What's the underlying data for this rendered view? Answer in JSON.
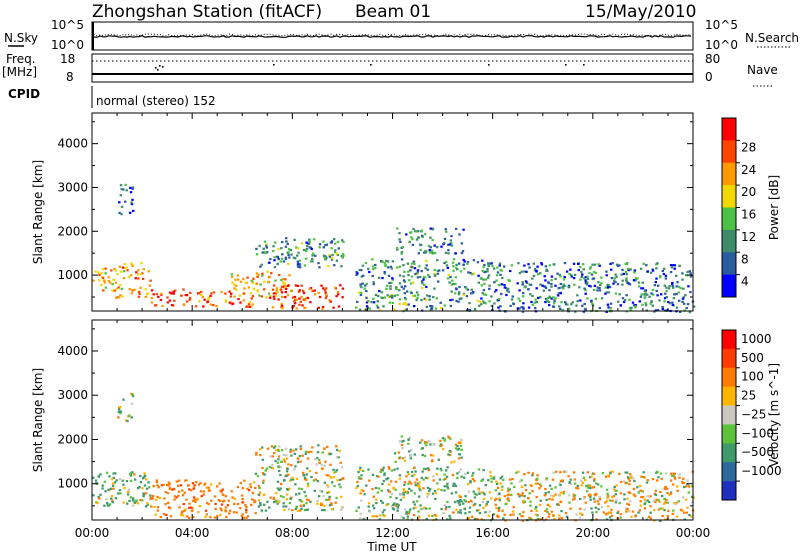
{
  "header": {
    "station": "Zhongshan Station (fitACF)",
    "beam": "Beam 01",
    "date": "15/May/2010"
  },
  "strip_labels": {
    "nsky": "N.Sky",
    "nsky_top": "10^5",
    "nsky_bot": "10^0",
    "nsearch": "N.Search",
    "nsearch_top": "10^5",
    "nsearch_bot": "10^0",
    "freq": "Freq.",
    "freq_unit": "[MHz]",
    "freq_top": "18",
    "freq_bot": "8",
    "nave": "Nave",
    "nave_top": "80",
    "nave_bot": "0",
    "cpid": "CPID",
    "cpid_text": "normal (stereo) 152"
  },
  "chart_data": [
    {
      "type": "heatmap",
      "name": "power-panel",
      "ylabel": "Slant Range [km]",
      "xlabel": "",
      "x_ticks": [
        "00:00",
        "04:00",
        "08:00",
        "12:00",
        "16:00",
        "20:00",
        "00:00"
      ],
      "xlim_hours": [
        0,
        24
      ],
      "y_ticks": [
        1000,
        2000,
        3000,
        4000
      ],
      "ylim": [
        180,
        4700
      ],
      "colorbar": {
        "label": "Power [dB]",
        "ticks": [
          "4",
          "8",
          "12",
          "16",
          "20",
          "24",
          "28"
        ],
        "colors": [
          "#0000ff",
          "#2a5aa0",
          "#3c8c6a",
          "#4cc244",
          "#f0d800",
          "#ff9900",
          "#ff4400",
          "#ff0000"
        ],
        "range": [
          0,
          32
        ]
      },
      "clusters": [
        {
          "t0": 0.0,
          "t1": 0.9,
          "r0": 600,
          "r1": 1200,
          "level": 20
        },
        {
          "t0": 0.9,
          "t1": 2.3,
          "r0": 500,
          "r1": 1300,
          "level": 22
        },
        {
          "t0": 2.3,
          "t1": 4.0,
          "r0": 300,
          "r1": 700,
          "level": 29
        },
        {
          "t0": 4.0,
          "t1": 6.5,
          "r0": 280,
          "r1": 650,
          "level": 24
        },
        {
          "t0": 5.5,
          "t1": 8.0,
          "r0": 500,
          "r1": 1100,
          "level": 21
        },
        {
          "t0": 7.0,
          "t1": 10.0,
          "r0": 250,
          "r1": 800,
          "level": 28
        },
        {
          "t0": 6.5,
          "t1": 10.0,
          "r0": 1200,
          "r1": 1900,
          "level": 10
        },
        {
          "t0": 1.0,
          "t1": 1.6,
          "r0": 2400,
          "r1": 3100,
          "level": 6
        },
        {
          "t0": 12.0,
          "t1": 14.8,
          "r0": 1500,
          "r1": 2100,
          "level": 9
        },
        {
          "t0": 10.5,
          "t1": 16.0,
          "r0": 200,
          "r1": 1400,
          "level": 10
        },
        {
          "t0": 16.0,
          "t1": 24.0,
          "r0": 180,
          "r1": 1300,
          "level": 8
        }
      ]
    },
    {
      "type": "heatmap",
      "name": "velocity-panel",
      "ylabel": "Slant Range [km]",
      "xlabel": "Time UT",
      "x_ticks": [
        "00:00",
        "04:00",
        "08:00",
        "12:00",
        "16:00",
        "20:00",
        "00:00"
      ],
      "xlim_hours": [
        0,
        24
      ],
      "y_ticks": [
        1000,
        2000,
        3000,
        4000
      ],
      "ylim": [
        180,
        4700
      ],
      "colorbar": {
        "label": "Velocity [m s^-1]",
        "ticks": [
          "1000",
          "500",
          "100",
          "25",
          "−25",
          "−100",
          "−500",
          "−1000"
        ],
        "colors": [
          "#1f2fc0",
          "#2f6a9f",
          "#3f9a6a",
          "#5cc23a",
          "#c8c8c0",
          "#ffb400",
          "#ff7a00",
          "#ff3c00",
          "#ff0000"
        ],
        "range": [
          -1000,
          1000
        ]
      },
      "clusters": [
        {
          "t0": 0.0,
          "t1": 2.3,
          "r0": 500,
          "r1": 1300,
          "level": 100
        },
        {
          "t0": 2.3,
          "t1": 6.5,
          "r0": 250,
          "r1": 1100,
          "level": -300
        },
        {
          "t0": 6.5,
          "t1": 10.0,
          "r0": 400,
          "r1": 1200,
          "level": 60
        },
        {
          "t0": 6.5,
          "t1": 10.0,
          "r0": 1200,
          "r1": 1900,
          "level": 0
        },
        {
          "t0": 1.0,
          "t1": 1.6,
          "r0": 2400,
          "r1": 3100,
          "level": 0
        },
        {
          "t0": 12.0,
          "t1": 14.8,
          "r0": 1500,
          "r1": 2100,
          "level": 0
        },
        {
          "t0": 10.5,
          "t1": 16.0,
          "r0": 200,
          "r1": 1400,
          "level": 80
        },
        {
          "t0": 16.0,
          "t1": 24.0,
          "r0": 180,
          "r1": 1300,
          "level": -60
        }
      ]
    }
  ]
}
